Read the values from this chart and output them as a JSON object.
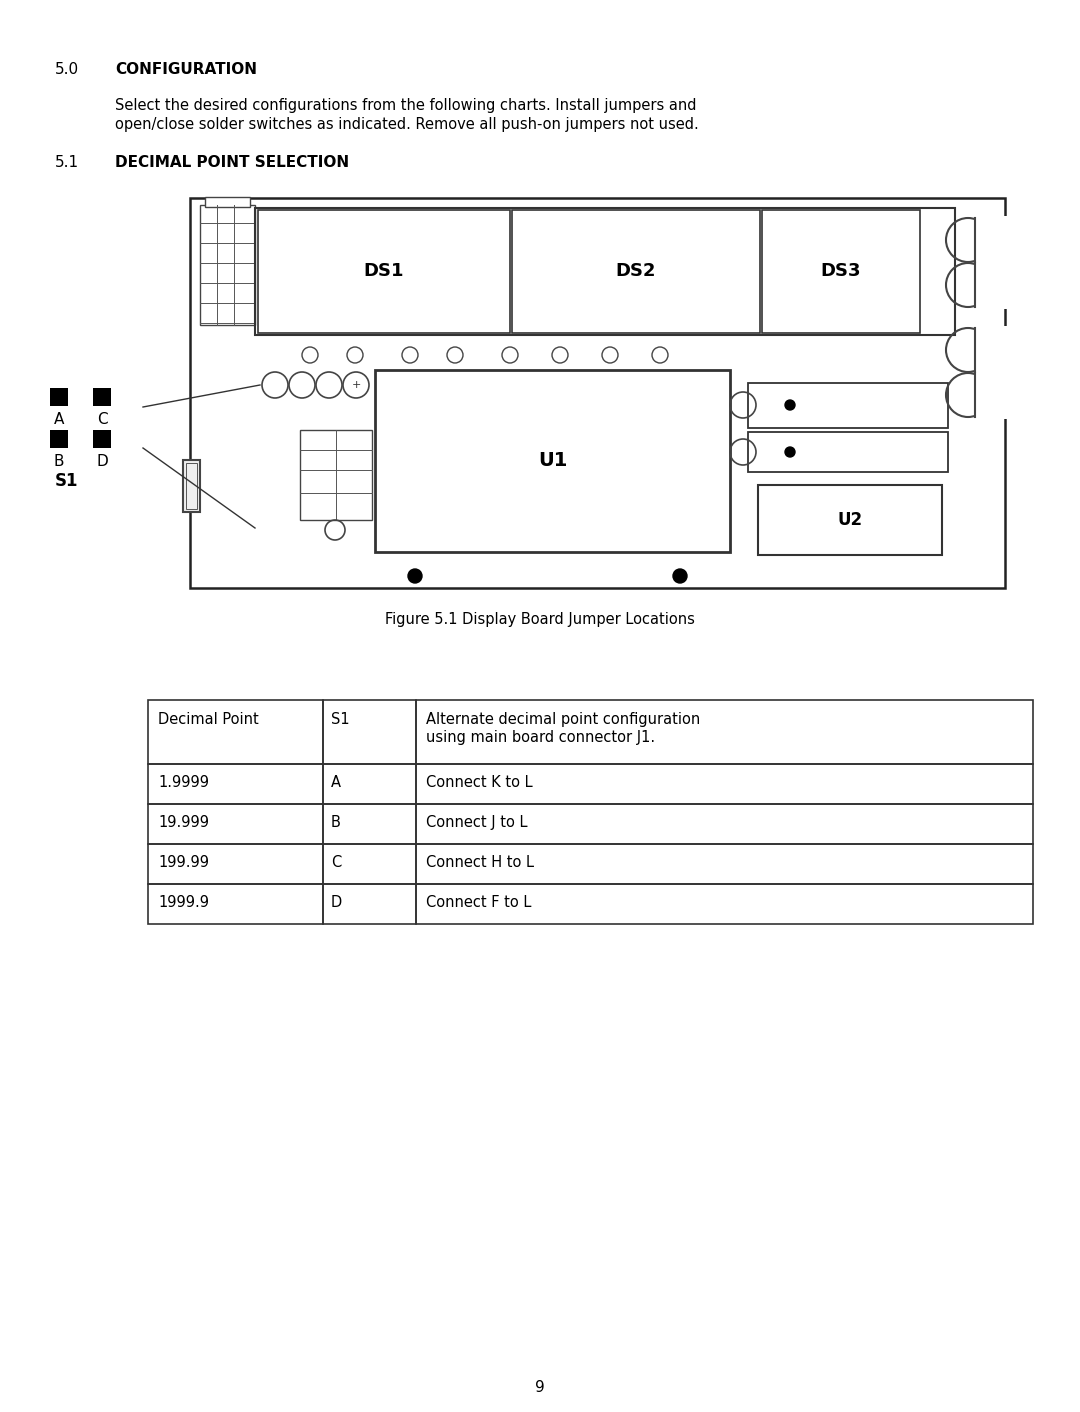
{
  "title_50": "5.0",
  "title_50_label": "CONFIGURATION",
  "body_line1": "Select the desired conﬁgurations from the following charts. Install jumpers and",
  "body_line2": "open/close solder switches as indicated. Remove all push-on jumpers not used.",
  "title_51": "5.1",
  "title_51_label": "DECIMAL POINT SELECTION",
  "figure_caption": "Figure 5.1 Display Board Jumper Locations",
  "table_headers": [
    "Decimal Point",
    "S1",
    "Alternate decimal point conﬁguration\nusing main board connector J1."
  ],
  "table_rows": [
    [
      "1.9999",
      "A",
      "Connect K to L"
    ],
    [
      "19.999",
      "B",
      "Connect J to L"
    ],
    [
      "199.99",
      "C",
      "Connect H to L"
    ],
    [
      "1999.9",
      "D",
      "Connect F to L"
    ]
  ],
  "page_number": "9",
  "bg_color": "#ffffff",
  "text_color": "#000000"
}
